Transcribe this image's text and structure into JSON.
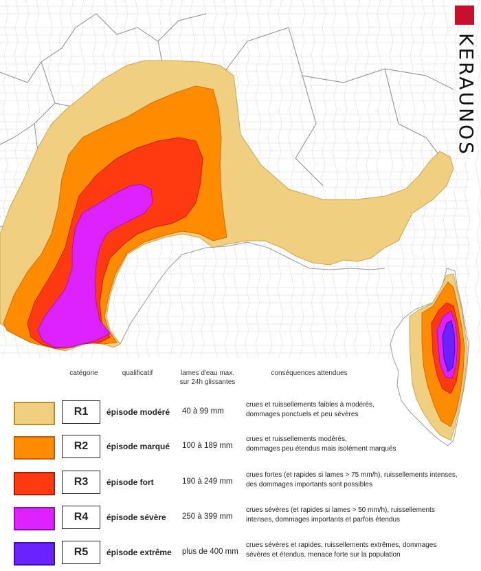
{
  "brand": {
    "name": "KERAUNOS",
    "logo_color": "#c8102e"
  },
  "legend": {
    "headers": {
      "categorie": "catégorie",
      "qualificatif": "qualificatif",
      "lames_line1": "lames d'eau max.",
      "lames_line2": "sur 24h glissantes",
      "consequences": "conséquences attendues"
    },
    "rows": [
      {
        "code": "R1",
        "qualificatif": "épisode modéré",
        "lames": "40 à 99 mm",
        "cons_line1": "crues et ruissellements faibles à modérés,",
        "cons_line2": "dommages ponctuels et peu sévères",
        "fill": "#f0d080",
        "border": "#b8902a"
      },
      {
        "code": "R2",
        "qualificatif": "épisode marqué",
        "lames": "100 à 189 mm",
        "cons_line1": "crues et ruissellements modérés,",
        "cons_line2": "dommages peu étendus mais isolément marqués",
        "fill": "#ff8c00",
        "border": "#c06000"
      },
      {
        "code": "R3",
        "qualificatif": "épisode fort",
        "lames": "190 à 249 mm",
        "cons_line1": "crues fortes (et rapides si lames > 75 mm/h), ruissellements intenses,",
        "cons_line2": "des dommages importants sont possibles",
        "fill": "#ff3a10",
        "border": "#b01800"
      },
      {
        "code": "R4",
        "qualificatif": "épisode sévère",
        "lames": "250 à 399 mm",
        "cons_line1": "crues sévères (et rapides si lames > 50 mm/h), ruissellements",
        "cons_line2": "intenses,  dommages importants et parfois étendus",
        "fill": "#dd22ff",
        "border": "#9010b0"
      },
      {
        "code": "R5",
        "qualificatif": "épisode extrême",
        "lames": "plus de 400 mm",
        "cons_line1": "crues sévères et rapides, ruissellements extrêmes, dommages",
        "cons_line2": "sévères et étendus, menace forte sur la population",
        "fill": "#6a22ff",
        "border": "#3a10b0"
      }
    ]
  },
  "map_colors": {
    "land": "#ffffff",
    "borders": "#c8c8c8",
    "dept_borders": "#8c8c8c"
  }
}
